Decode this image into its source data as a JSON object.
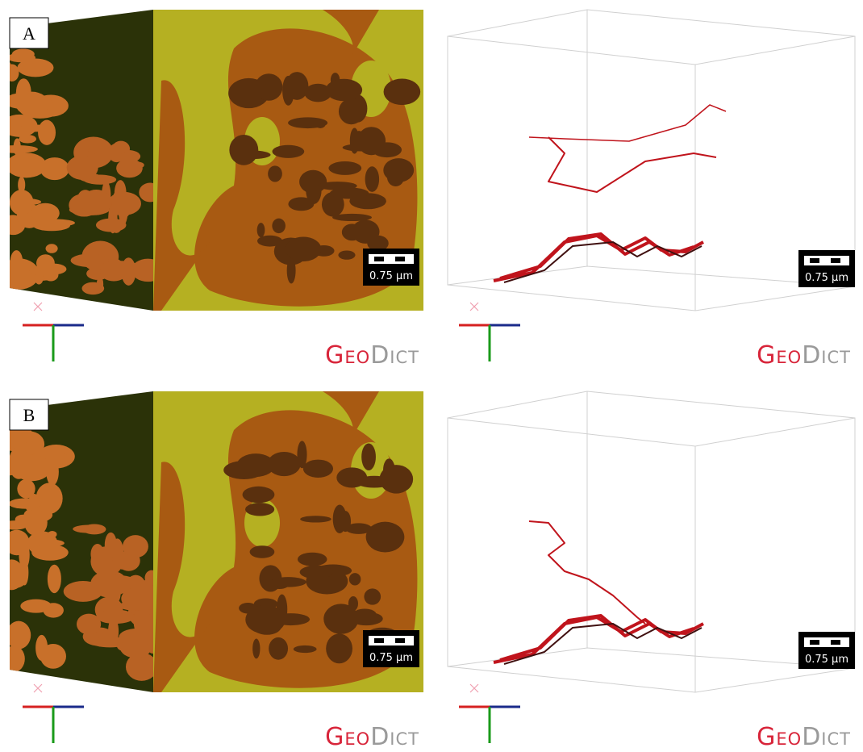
{
  "panels": [
    {
      "label": "A",
      "views": [
        {
          "scale_bar": "0.75 µm",
          "logo": {
            "part1": "Geo",
            "part2": "Dict"
          }
        },
        {
          "scale_bar": "0.75 µm",
          "logo": {
            "part1": "Geo",
            "part2": "Dict"
          }
        }
      ]
    },
    {
      "label": "B",
      "views": [
        {
          "scale_bar": "0.75 µm",
          "logo": {
            "part1": "Geo",
            "part2": "Dict"
          }
        },
        {
          "scale_bar": "0.75 µm",
          "logo": {
            "part1": "Geo",
            "part2": "Dict"
          }
        }
      ]
    }
  ]
}
